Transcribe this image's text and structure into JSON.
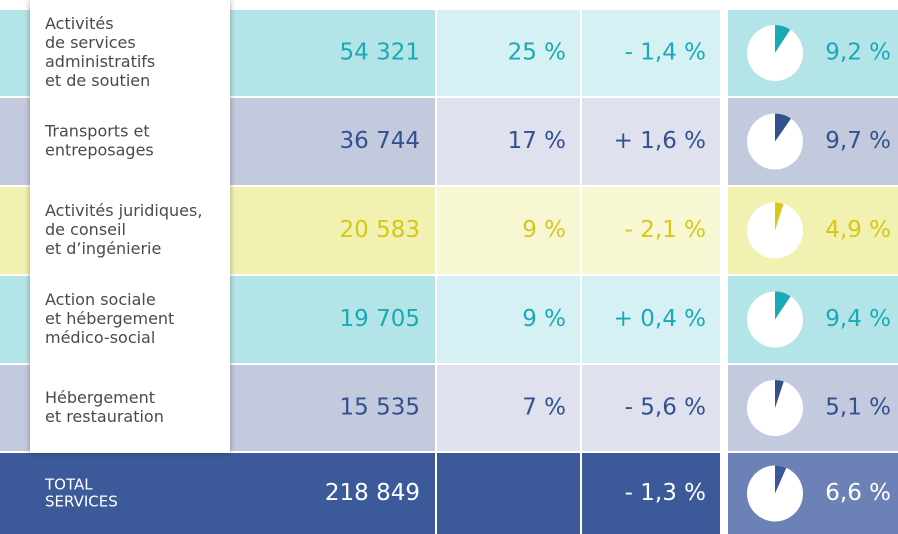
{
  "table": {
    "rows": [
      {
        "label": [
          "Activités",
          "de services",
          "administratifs",
          "et de soutien"
        ],
        "count": "54 321",
        "share": "25 %",
        "change": "- 1,4 %",
        "pie": {
          "value": 9.2,
          "label": "9,2 %"
        },
        "color": "#1aa9b6",
        "fill": "#b3e4e8",
        "fill_light": "#d5f1f3"
      },
      {
        "label": [
          "Transports et",
          "entreposages"
        ],
        "count": "36 744",
        "share": "17 %",
        "change": "+ 1,6 %",
        "pie": {
          "value": 9.7,
          "label": "9,7 %"
        },
        "color": "#33508f",
        "fill": "#c4cade",
        "fill_light": "#dfe2ee"
      },
      {
        "label": [
          "Activités juridiques,",
          "de conseil",
          "et d’ingénierie"
        ],
        "count": "20 583",
        "share": "9 %",
        "change": "- 2,1 %",
        "pie": {
          "value": 4.9,
          "label": "4,9 %"
        },
        "color": "#d6c718",
        "fill": "#f1f1b2",
        "fill_light": "#f7f7d3"
      },
      {
        "label": [
          "Action sociale",
          "et hébergement",
          "médico-social"
        ],
        "count": "19 705",
        "share": "9 %",
        "change": "+ 0,4 %",
        "pie": {
          "value": 9.4,
          "label": "9,4 %"
        },
        "color": "#1aa9b6",
        "fill": "#b3e4e8",
        "fill_light": "#d5f1f3"
      },
      {
        "label": [
          "Hébergement",
          "et restauration"
        ],
        "count": "15 535",
        "share": "7 %",
        "change": "- 5,6 %",
        "pie": {
          "value": 5.1,
          "label": "5,1 %"
        },
        "color": "#33508f",
        "fill": "#c4cade",
        "fill_light": "#dfe2ee"
      }
    ],
    "total": {
      "label": [
        "TOTAL",
        "SERVICES"
      ],
      "count": "218 849",
      "change": "- 1,3 %",
      "pie": {
        "value": 6.6,
        "label": "6,6 %"
      },
      "color": "#3a5796",
      "fill": "#3c5a99",
      "fill_light": "#6c82b7"
    }
  }
}
